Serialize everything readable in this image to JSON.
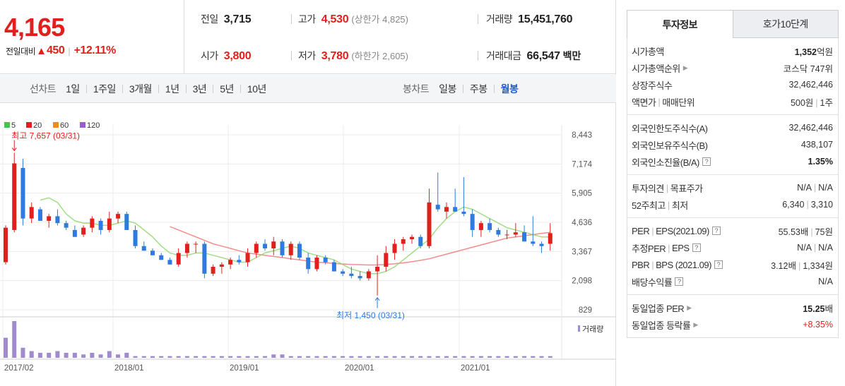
{
  "quote": {
    "price": "4,165",
    "change_label": "전일대비",
    "change_value": "450",
    "change_pct": "+12.11%",
    "prev_label": "전일",
    "prev_value": "3,715",
    "open_label": "시가",
    "open_value": "3,800",
    "high_label": "고가",
    "high_value": "4,530",
    "upper_limit": "(상한가 4,825)",
    "low_label": "저가",
    "low_value": "3,780",
    "lower_limit": "(하한가 2,605)",
    "volume_label": "거래량",
    "volume_value": "15,451,760",
    "amount_label": "거래대금",
    "amount_value": "66,547",
    "amount_unit": "백만"
  },
  "line_chart_bar": {
    "title": "선차트",
    "items": [
      "1일",
      "1주일",
      "3개월",
      "1년",
      "3년",
      "5년",
      "10년"
    ]
  },
  "candle_bar": {
    "title": "봉차트",
    "items": [
      "일봉",
      "주봉",
      "월봉"
    ],
    "active": "월봉"
  },
  "colors": {
    "up": "#e0201c",
    "down": "#2e7ae0",
    "ma5": "#4cc14a",
    "ma20": "#e0201c",
    "ma60": "#f08a18",
    "ma120": "#9a5fc8",
    "volume": "#a08ccc"
  },
  "chart_data": {
    "type": "candlestick",
    "legend": [
      "5",
      "20",
      "60",
      "120"
    ],
    "y_ticks": [
      "8,443",
      "7,174",
      "5,905",
      "4,636",
      "3,367",
      "2,098",
      "829"
    ],
    "y_range": [
      829,
      8443
    ],
    "x_ticks": [
      "2017/02",
      "2018/01",
      "2019/01",
      "2020/01",
      "2021/01"
    ],
    "high_annotation": "최고 7,657 (03/31)",
    "low_annotation": "최저 1,450 (03/31)",
    "volume_legend": "거래량",
    "candles": [
      {
        "o": 2900,
        "h": 4500,
        "l": 2800,
        "c": 4400
      },
      {
        "o": 4300,
        "h": 7657,
        "l": 4200,
        "c": 7200
      },
      {
        "o": 7000,
        "h": 7400,
        "l": 4500,
        "c": 4800
      },
      {
        "o": 4800,
        "h": 5500,
        "l": 4600,
        "c": 5300
      },
      {
        "o": 5200,
        "h": 5300,
        "l": 4700,
        "c": 4700
      },
      {
        "o": 4700,
        "h": 5000,
        "l": 4400,
        "c": 4900
      },
      {
        "o": 4900,
        "h": 5200,
        "l": 4500,
        "c": 4600
      },
      {
        "o": 4600,
        "h": 4700,
        "l": 4300,
        "c": 4400
      },
      {
        "o": 4300,
        "h": 4500,
        "l": 4000,
        "c": 4000
      },
      {
        "o": 4100,
        "h": 4500,
        "l": 4000,
        "c": 4400
      },
      {
        "o": 4400,
        "h": 4900,
        "l": 4200,
        "c": 4800
      },
      {
        "o": 4700,
        "h": 4800,
        "l": 4100,
        "c": 4300
      },
      {
        "o": 4300,
        "h": 5100,
        "l": 4200,
        "c": 4800
      },
      {
        "o": 4800,
        "h": 5100,
        "l": 4600,
        "c": 5000
      },
      {
        "o": 5000,
        "h": 5100,
        "l": 4300,
        "c": 4300
      },
      {
        "o": 4300,
        "h": 4500,
        "l": 3500,
        "c": 3600
      },
      {
        "o": 3600,
        "h": 3800,
        "l": 3400,
        "c": 3400
      },
      {
        "o": 3400,
        "h": 3500,
        "l": 3200,
        "c": 3200
      },
      {
        "o": 3200,
        "h": 3300,
        "l": 3000,
        "c": 3000
      },
      {
        "o": 3000,
        "h": 3100,
        "l": 2800,
        "c": 2800
      },
      {
        "o": 2800,
        "h": 3500,
        "l": 2700,
        "c": 3300
      },
      {
        "o": 3300,
        "h": 3800,
        "l": 3100,
        "c": 3700
      },
      {
        "o": 3700,
        "h": 3800,
        "l": 3300,
        "c": 3700
      },
      {
        "o": 3700,
        "h": 3800,
        "l": 2200,
        "c": 2400
      },
      {
        "o": 2400,
        "h": 2800,
        "l": 2300,
        "c": 2700
      },
      {
        "o": 2700,
        "h": 2900,
        "l": 2400,
        "c": 2800
      },
      {
        "o": 2800,
        "h": 3100,
        "l": 2600,
        "c": 3000
      },
      {
        "o": 3000,
        "h": 3200,
        "l": 2800,
        "c": 2900
      },
      {
        "o": 2900,
        "h": 3500,
        "l": 2700,
        "c": 3300
      },
      {
        "o": 3300,
        "h": 3800,
        "l": 3100,
        "c": 3700
      },
      {
        "o": 3700,
        "h": 3900,
        "l": 3400,
        "c": 3500
      },
      {
        "o": 3500,
        "h": 4000,
        "l": 3200,
        "c": 3800
      },
      {
        "o": 3800,
        "h": 3900,
        "l": 3100,
        "c": 3200
      },
      {
        "o": 3200,
        "h": 3800,
        "l": 3000,
        "c": 3700
      },
      {
        "o": 3700,
        "h": 3800,
        "l": 3000,
        "c": 3100
      },
      {
        "o": 3100,
        "h": 3300,
        "l": 2400,
        "c": 2600
      },
      {
        "o": 2600,
        "h": 3200,
        "l": 2500,
        "c": 3100
      },
      {
        "o": 3100,
        "h": 3200,
        "l": 2800,
        "c": 2900
      },
      {
        "o": 2900,
        "h": 3000,
        "l": 2500,
        "c": 2500
      },
      {
        "o": 2500,
        "h": 2600,
        "l": 2300,
        "c": 2400
      },
      {
        "o": 2400,
        "h": 2700,
        "l": 2200,
        "c": 2300
      },
      {
        "o": 2300,
        "h": 2500,
        "l": 2100,
        "c": 2200
      },
      {
        "o": 2200,
        "h": 2600,
        "l": 2100,
        "c": 2500
      },
      {
        "o": 2500,
        "h": 3200,
        "l": 1450,
        "c": 2700
      },
      {
        "o": 2700,
        "h": 3600,
        "l": 2500,
        "c": 3300
      },
      {
        "o": 3300,
        "h": 3900,
        "l": 3000,
        "c": 3700
      },
      {
        "o": 3700,
        "h": 4000,
        "l": 3400,
        "c": 3900
      },
      {
        "o": 3900,
        "h": 4100,
        "l": 3700,
        "c": 4000
      },
      {
        "o": 4000,
        "h": 4100,
        "l": 3500,
        "c": 3600
      },
      {
        "o": 3600,
        "h": 6100,
        "l": 3500,
        "c": 5500
      },
      {
        "o": 5400,
        "h": 6800,
        "l": 5100,
        "c": 5200
      },
      {
        "o": 5100,
        "h": 5500,
        "l": 4800,
        "c": 5300
      },
      {
        "o": 5300,
        "h": 6100,
        "l": 5100,
        "c": 5100
      },
      {
        "o": 5100,
        "h": 6600,
        "l": 4900,
        "c": 5000
      },
      {
        "o": 5000,
        "h": 5200,
        "l": 4000,
        "c": 4300
      },
      {
        "o": 4300,
        "h": 4700,
        "l": 4000,
        "c": 4600
      },
      {
        "o": 4600,
        "h": 4800,
        "l": 4200,
        "c": 4300
      },
      {
        "o": 4300,
        "h": 4400,
        "l": 4000,
        "c": 4100
      },
      {
        "o": 4100,
        "h": 4300,
        "l": 3900,
        "c": 4100
      },
      {
        "o": 4100,
        "h": 4600,
        "l": 4000,
        "c": 4200
      },
      {
        "o": 4200,
        "h": 4500,
        "l": 3800,
        "c": 3800
      },
      {
        "o": 3800,
        "h": 4900,
        "l": 3600,
        "c": 3700
      },
      {
        "o": 3700,
        "h": 3800,
        "l": 3300,
        "c": 3600
      },
      {
        "o": 3700,
        "h": 4600,
        "l": 3400,
        "c": 4165
      }
    ],
    "ma5": [
      null,
      null,
      null,
      null,
      5600,
      5700,
      5500,
      5000,
      4700,
      4600,
      4600,
      4500,
      4500,
      4600,
      4700,
      4600,
      4300,
      4000,
      3600,
      3300,
      3200,
      3200,
      3300,
      3300,
      3200,
      3100,
      3000,
      2900,
      2900,
      3100,
      3300,
      3400,
      3500,
      3600,
      3500,
      3300,
      3200,
      3100,
      3000,
      2800,
      2600,
      2500,
      2400,
      2400,
      2500,
      2700,
      3000,
      3300,
      3600,
      3900,
      4400,
      4800,
      5100,
      5300,
      5200,
      5000,
      4800,
      4600,
      4400,
      4300,
      4200,
      4100,
      4000,
      4000
    ],
    "ma20": [
      null,
      null,
      null,
      null,
      null,
      null,
      null,
      null,
      null,
      null,
      null,
      null,
      null,
      null,
      null,
      null,
      null,
      null,
      null,
      4450,
      4300,
      4150,
      4000,
      3850,
      3700,
      3600,
      3500,
      3400,
      3300,
      3250,
      3200,
      3150,
      3100,
      3050,
      3000,
      2950,
      2900,
      2880,
      2850,
      2820,
      2800,
      2790,
      2780,
      2780,
      2800,
      2830,
      2870,
      2920,
      2980,
      3050,
      3150,
      3250,
      3350,
      3450,
      3550,
      3650,
      3750,
      3850,
      3950,
      4000,
      4050,
      4100,
      4150,
      4200
    ],
    "volume": [
      12,
      22,
      6,
      4,
      3,
      3,
      4,
      3,
      3,
      2,
      3,
      2,
      4,
      2,
      3,
      1,
      1,
      1,
      1,
      1,
      1,
      1,
      1,
      1,
      1,
      1,
      1,
      1,
      1,
      1,
      1,
      2,
      2,
      1,
      1,
      1,
      1,
      1,
      1,
      1,
      1,
      1,
      1,
      1,
      1,
      1,
      1,
      1,
      1,
      1,
      1,
      1,
      1,
      1,
      1,
      1,
      1,
      1,
      1,
      1,
      1,
      1,
      1,
      1
    ]
  },
  "tabs": {
    "invest_info": "투자정보",
    "orderbook": "호가10단계"
  },
  "info": {
    "market_cap_label": "시가총액",
    "market_cap_value": "1,352",
    "market_cap_unit": "억원",
    "rank_label": "시가총액순위",
    "rank_value": "코스닥 747위",
    "shares_label": "상장주식수",
    "shares_value": "32,462,446",
    "par_label": "액면가",
    "unit_label": "매매단위",
    "par_value": "500원",
    "unit_value": "1주",
    "foreign_limit_label": "외국인한도주식수(A)",
    "foreign_limit_value": "32,462,446",
    "foreign_hold_label": "외국인보유주식수(B)",
    "foreign_hold_value": "438,107",
    "foreign_ratio_label": "외국인소진율(B/A)",
    "foreign_ratio_value": "1.35%",
    "opinion_label": "투자의견",
    "target_label": "목표주가",
    "opinion_value": "N/A",
    "target_value": "N/A",
    "high52_label": "52주최고",
    "low52_label": "최저",
    "high52_value": "6,340",
    "low52_value": "3,310",
    "per_label": "PER",
    "eps_label": "EPS(2021.09)",
    "per_value": "55.53배",
    "eps_value": "75원",
    "est_per_label": "추정PER",
    "est_eps_label": "EPS",
    "est_per_value": "N/A",
    "est_eps_value": "N/A",
    "pbr_label": "PBR",
    "bps_label": "BPS (2021.09)",
    "pbr_value": "3.12배",
    "bps_value": "1,334원",
    "div_label": "배당수익률",
    "div_value": "N/A",
    "ind_per_label": "동일업종 PER",
    "ind_per_value": "15.25",
    "ind_per_unit": "배",
    "ind_chg_label": "동일업종 등락률",
    "ind_chg_value": "+8.35%"
  }
}
